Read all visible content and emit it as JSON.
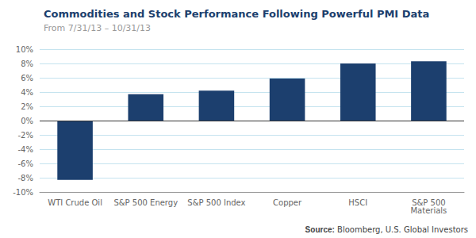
{
  "chart_data": {
    "type": "bar",
    "title": "Commodities and Stock Performance Following Powerful PMI Data",
    "subtitle": "From 7/31/13 – 10/31/13",
    "annotations": [
      "Source:",
      "Bloomberg, U.S. Global Investors"
    ],
    "categories": [
      "WTI Crude Oil",
      "S&P 500 Energy",
      "S&P 500 Index",
      "Copper",
      "HSCI",
      "S&P 500\nMaterials"
    ],
    "values": [
      -8.3,
      3.7,
      4.2,
      5.9,
      8.0,
      8.3
    ],
    "color": "#1c3f6e",
    "ylim": [
      -10,
      10
    ],
    "yticks": [
      {
        "value": -10,
        "label": "-10%"
      },
      {
        "value": -8,
        "label": "-8%"
      },
      {
        "value": -6,
        "label": "-6%"
      },
      {
        "value": -4,
        "label": "-4%"
      },
      {
        "value": -2,
        "label": "-2%"
      },
      {
        "value": 0,
        "label": "0%"
      },
      {
        "value": 2,
        "label": "2%"
      },
      {
        "value": 4,
        "label": "4%"
      },
      {
        "value": 6,
        "label": "6%"
      },
      {
        "value": 8,
        "label": "8%"
      },
      {
        "value": 10,
        "label": "10%"
      }
    ],
    "grid": true
  }
}
